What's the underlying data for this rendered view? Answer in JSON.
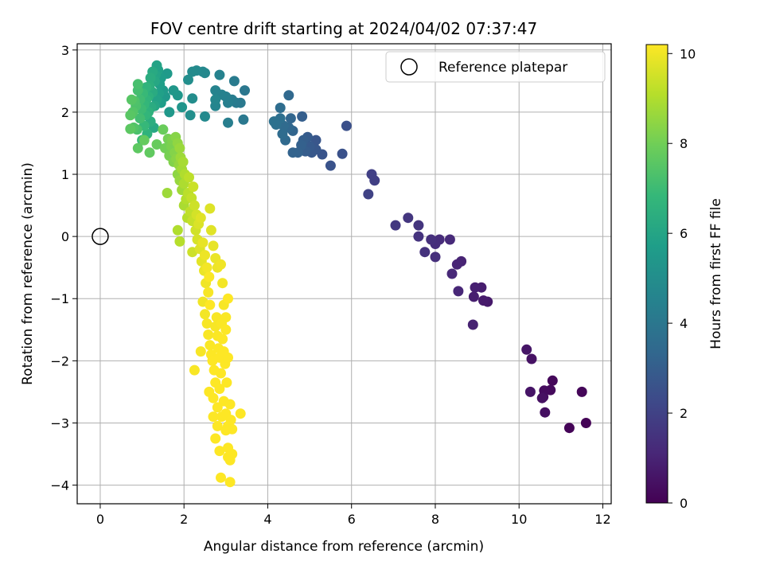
{
  "chart_data": {
    "type": "scatter",
    "title": "FOV centre drift starting at 2024/04/02 07:37:47",
    "xlabel": "Angular distance from reference (arcmin)",
    "ylabel": "Rotation from reference (arcmin)",
    "xlim": [
      -0.55,
      12.2
    ],
    "ylim": [
      -4.3,
      3.1
    ],
    "xticks": [
      0,
      2,
      4,
      6,
      8,
      10,
      12
    ],
    "yticks": [
      -4,
      -3,
      -2,
      -1,
      0,
      1,
      2,
      3
    ],
    "xtick_labels": [
      "0",
      "2",
      "4",
      "6",
      "8",
      "10",
      "12"
    ],
    "ytick_labels": [
      "−4",
      "−3",
      "−2",
      "−1",
      "0",
      "1",
      "2",
      "3"
    ],
    "grid": true,
    "legend": {
      "placement": "top-right",
      "entries": [
        {
          "label": "Reference platepar",
          "marker": "open-circle"
        }
      ]
    },
    "reference_point": {
      "x": 0,
      "y": 0
    },
    "colorbar": {
      "label": "Hours from first FF file",
      "colormap": "viridis",
      "range": [
        0,
        10.2
      ],
      "ticks": [
        0,
        2,
        4,
        6,
        8,
        10
      ],
      "tick_labels": [
        "0",
        "2",
        "4",
        "6",
        "8",
        "10"
      ]
    },
    "points_xyc": [
      [
        11.6,
        -3.0,
        0.05
      ],
      [
        11.2,
        -3.08,
        0.1
      ],
      [
        11.5,
        -2.5,
        0.15
      ],
      [
        10.8,
        -2.32,
        0.2
      ],
      [
        10.75,
        -2.47,
        0.25
      ],
      [
        10.6,
        -2.48,
        0.3
      ],
      [
        10.58,
        -2.58,
        0.35
      ],
      [
        10.62,
        -2.83,
        0.4
      ],
      [
        10.55,
        -2.6,
        0.45
      ],
      [
        10.3,
        -1.97,
        0.5
      ],
      [
        10.27,
        -2.5,
        0.55
      ],
      [
        10.18,
        -1.82,
        0.6
      ],
      [
        9.25,
        -1.05,
        0.7
      ],
      [
        9.15,
        -1.03,
        0.75
      ],
      [
        9.1,
        -0.82,
        0.8
      ],
      [
        8.92,
        -0.97,
        0.85
      ],
      [
        8.95,
        -0.82,
        0.9
      ],
      [
        8.9,
        -1.42,
        0.95
      ],
      [
        8.62,
        -0.4,
        1.0
      ],
      [
        8.52,
        -0.45,
        1.05
      ],
      [
        8.55,
        -0.88,
        1.1
      ],
      [
        8.4,
        -0.6,
        1.15
      ],
      [
        8.35,
        -0.05,
        1.2
      ],
      [
        8.1,
        -0.05,
        1.25
      ],
      [
        8.0,
        -0.12,
        1.3
      ],
      [
        8.0,
        -0.33,
        1.35
      ],
      [
        7.9,
        -0.05,
        1.4
      ],
      [
        7.75,
        -0.25,
        1.45
      ],
      [
        7.6,
        0.0,
        1.5
      ],
      [
        7.6,
        0.18,
        1.55
      ],
      [
        7.35,
        0.3,
        1.6
      ],
      [
        7.05,
        0.18,
        1.65
      ],
      [
        6.55,
        0.9,
        1.9
      ],
      [
        6.48,
        1.0,
        1.95
      ],
      [
        6.4,
        0.68,
        2.0
      ],
      [
        5.88,
        1.78,
        2.5
      ],
      [
        5.78,
        1.33,
        2.55
      ],
      [
        5.5,
        1.14,
        2.6
      ],
      [
        5.3,
        1.32,
        2.65
      ],
      [
        5.15,
        1.55,
        2.7
      ],
      [
        5.15,
        1.4,
        2.75
      ],
      [
        5.05,
        1.35,
        2.8
      ],
      [
        5.0,
        1.45,
        2.85
      ],
      [
        4.95,
        1.6,
        2.9
      ],
      [
        4.9,
        1.37,
        2.95
      ],
      [
        4.85,
        1.55,
        3.0
      ],
      [
        4.82,
        1.93,
        3.05
      ],
      [
        4.8,
        1.47,
        3.1
      ],
      [
        4.72,
        1.35,
        3.15
      ],
      [
        4.6,
        1.35,
        3.2
      ],
      [
        4.6,
        1.7,
        3.25
      ],
      [
        4.55,
        1.9,
        3.3
      ],
      [
        4.5,
        1.75,
        3.35
      ],
      [
        4.5,
        2.27,
        3.4
      ],
      [
        4.42,
        1.55,
        3.45
      ],
      [
        4.38,
        1.78,
        3.5
      ],
      [
        4.35,
        1.65,
        3.55
      ],
      [
        4.3,
        2.07,
        3.6
      ],
      [
        4.3,
        1.9,
        3.65
      ],
      [
        4.2,
        1.8,
        3.7
      ],
      [
        4.15,
        1.85,
        3.75
      ],
      [
        3.45,
        2.35,
        4.0
      ],
      [
        3.42,
        1.88,
        4.05
      ],
      [
        3.35,
        2.15,
        4.1
      ],
      [
        3.25,
        2.15,
        4.15
      ],
      [
        3.2,
        2.5,
        4.2
      ],
      [
        3.15,
        2.2,
        4.25
      ],
      [
        3.05,
        1.83,
        4.3
      ],
      [
        3.05,
        2.15,
        4.35
      ],
      [
        3.0,
        2.25,
        4.4
      ],
      [
        2.9,
        2.28,
        4.45
      ],
      [
        2.85,
        2.6,
        4.5
      ],
      [
        2.75,
        2.35,
        4.55
      ],
      [
        2.75,
        2.1,
        4.6
      ],
      [
        2.75,
        2.2,
        4.65
      ],
      [
        2.5,
        2.63,
        4.7
      ],
      [
        2.45,
        2.65,
        4.75
      ],
      [
        2.5,
        1.93,
        4.8
      ],
      [
        2.3,
        2.67,
        4.85
      ],
      [
        2.2,
        2.65,
        4.9
      ],
      [
        2.2,
        2.22,
        4.95
      ],
      [
        2.1,
        2.52,
        5.0
      ],
      [
        2.15,
        1.95,
        5.05
      ],
      [
        1.95,
        2.08,
        5.3
      ],
      [
        1.85,
        2.27,
        5.35
      ],
      [
        1.75,
        2.35,
        5.4
      ],
      [
        1.65,
        2.0,
        5.45
      ],
      [
        1.55,
        2.25,
        5.5
      ],
      [
        1.6,
        2.62,
        5.55
      ],
      [
        1.5,
        2.35,
        5.6
      ],
      [
        1.45,
        2.55,
        5.65
      ],
      [
        1.45,
        2.15,
        5.7
      ],
      [
        1.42,
        2.45,
        5.75
      ],
      [
        1.4,
        2.3,
        5.8
      ],
      [
        1.38,
        2.68,
        5.85
      ],
      [
        1.35,
        2.2,
        5.9
      ],
      [
        1.35,
        2.75,
        5.95
      ],
      [
        1.32,
        2.6,
        6.0
      ],
      [
        1.3,
        2.1,
        6.05
      ],
      [
        1.3,
        2.5,
        6.1
      ],
      [
        1.28,
        1.75,
        6.15
      ],
      [
        1.25,
        2.65,
        6.2
      ],
      [
        1.25,
        2.32,
        6.25
      ],
      [
        1.22,
        2.08,
        6.3
      ],
      [
        1.2,
        2.55,
        6.35
      ],
      [
        1.2,
        1.85,
        6.4
      ],
      [
        1.18,
        2.42,
        6.45
      ],
      [
        1.15,
        2.25,
        6.5
      ],
      [
        1.15,
        2.0,
        6.55
      ],
      [
        1.12,
        1.65,
        6.6
      ],
      [
        1.1,
        2.4,
        6.65
      ],
      [
        1.1,
        2.2,
        6.7
      ],
      [
        1.08,
        1.95,
        6.75
      ],
      [
        1.05,
        2.12,
        6.8
      ],
      [
        1.05,
        1.78,
        6.85
      ],
      [
        1.02,
        2.3,
        6.9
      ],
      [
        1.0,
        1.55,
        6.95
      ],
      [
        0.98,
        2.05,
        7.0
      ],
      [
        0.95,
        2.2,
        7.05
      ],
      [
        0.95,
        1.9,
        7.1
      ],
      [
        0.9,
        2.35,
        7.15
      ],
      [
        0.9,
        2.45,
        7.2
      ],
      [
        0.88,
        1.72,
        7.25
      ],
      [
        0.85,
        2.1,
        7.3
      ],
      [
        0.82,
        2.18,
        7.35
      ],
      [
        0.8,
        1.75,
        7.4
      ],
      [
        0.78,
        2.0,
        7.45
      ],
      [
        0.75,
        2.2,
        7.5
      ],
      [
        0.72,
        1.95,
        7.55
      ],
      [
        0.72,
        1.73,
        7.6
      ],
      [
        0.9,
        1.42,
        7.65
      ],
      [
        1.18,
        1.35,
        7.7
      ],
      [
        1.05,
        1.55,
        7.75
      ],
      [
        1.35,
        1.48,
        7.8
      ],
      [
        1.5,
        1.72,
        7.85
      ],
      [
        1.55,
        1.42,
        8.0
      ],
      [
        1.62,
        1.57,
        8.05
      ],
      [
        1.65,
        1.3,
        8.1
      ],
      [
        1.7,
        1.45,
        8.15
      ],
      [
        1.72,
        1.55,
        8.2
      ],
      [
        1.75,
        1.2,
        8.25
      ],
      [
        1.78,
        1.35,
        8.3
      ],
      [
        1.8,
        1.6,
        8.35
      ],
      [
        1.82,
        1.25,
        8.4
      ],
      [
        1.85,
        1.0,
        8.45
      ],
      [
        1.85,
        1.5,
        8.5
      ],
      [
        1.88,
        1.15,
        8.55
      ],
      [
        1.9,
        0.9,
        8.6
      ],
      [
        1.9,
        1.42,
        8.65
      ],
      [
        1.92,
        1.27,
        8.7
      ],
      [
        1.95,
        0.75,
        8.75
      ],
      [
        1.95,
        1.08,
        8.8
      ],
      [
        1.98,
        1.2,
        8.85
      ],
      [
        2.0,
        0.5,
        8.9
      ],
      [
        2.0,
        0.85,
        8.95
      ],
      [
        2.02,
        1.0,
        9.0
      ],
      [
        2.05,
        0.6,
        9.05
      ],
      [
        2.08,
        0.3,
        9.1
      ],
      [
        2.1,
        0.7,
        9.15
      ],
      [
        2.12,
        0.95,
        9.2
      ],
      [
        2.15,
        0.4,
        9.25
      ],
      [
        2.18,
        0.62,
        9.3
      ],
      [
        2.2,
        0.25,
        9.35
      ],
      [
        2.22,
        0.8,
        9.4
      ],
      [
        2.25,
        0.5,
        9.45
      ],
      [
        2.28,
        0.1,
        9.5
      ],
      [
        2.3,
        0.35,
        9.55
      ],
      [
        2.32,
        -0.05,
        9.6
      ],
      [
        2.35,
        0.2,
        9.65
      ],
      [
        2.38,
        -0.2,
        9.7
      ],
      [
        2.4,
        0.3,
        9.75
      ],
      [
        2.42,
        -0.4,
        9.8
      ],
      [
        2.45,
        -0.1,
        9.85
      ],
      [
        2.48,
        -0.55,
        9.9
      ],
      [
        2.5,
        -0.3,
        9.95
      ],
      [
        2.52,
        -0.75,
        10.0
      ],
      [
        2.55,
        -0.5,
        10.05
      ],
      [
        2.58,
        -0.9,
        10.1
      ],
      [
        2.6,
        -0.65,
        10.15
      ],
      [
        2.62,
        -1.1,
        10.2
      ],
      [
        1.6,
        0.7,
        8.7
      ],
      [
        1.85,
        0.1,
        9.0
      ],
      [
        1.9,
        -0.08,
        9.1
      ],
      [
        2.2,
        -0.25,
        9.45
      ],
      [
        2.62,
        0.45,
        9.7
      ],
      [
        2.65,
        0.1,
        9.75
      ],
      [
        2.7,
        -0.15,
        9.85
      ],
      [
        2.75,
        -0.35,
        9.9
      ],
      [
        2.8,
        -0.5,
        9.95
      ],
      [
        2.88,
        -0.45,
        10.0
      ],
      [
        2.92,
        -0.75,
        10.05
      ],
      [
        2.95,
        -1.1,
        10.1
      ],
      [
        3.0,
        -1.3,
        10.15
      ],
      [
        3.05,
        -1.0,
        10.2
      ],
      [
        2.45,
        -1.05,
        10.0
      ],
      [
        2.5,
        -1.25,
        10.05
      ],
      [
        2.55,
        -1.4,
        10.1
      ],
      [
        2.58,
        -1.58,
        10.12
      ],
      [
        2.62,
        -1.75,
        10.15
      ],
      [
        2.65,
        -1.9,
        10.18
      ],
      [
        2.68,
        -2.0,
        10.2
      ],
      [
        2.72,
        -2.15,
        10.2
      ],
      [
        2.75,
        -1.45,
        10.1
      ],
      [
        2.78,
        -1.3,
        10.12
      ],
      [
        2.8,
        -1.6,
        10.15
      ],
      [
        2.82,
        -1.8,
        10.18
      ],
      [
        2.85,
        -1.95,
        10.2
      ],
      [
        2.88,
        -2.2,
        10.2
      ],
      [
        2.9,
        -1.4,
        10.15
      ],
      [
        2.92,
        -1.65,
        10.18
      ],
      [
        2.95,
        -1.85,
        10.2
      ],
      [
        2.98,
        -2.05,
        10.2
      ],
      [
        3.0,
        -1.5,
        10.18
      ],
      [
        3.05,
        -1.95,
        10.2
      ],
      [
        3.02,
        -2.35,
        10.2
      ],
      [
        2.4,
        -1.85,
        10.1
      ],
      [
        2.25,
        -2.15,
        10.12
      ],
      [
        2.6,
        -2.5,
        10.2
      ],
      [
        2.7,
        -2.6,
        10.2
      ],
      [
        2.75,
        -2.35,
        10.2
      ],
      [
        2.8,
        -2.75,
        10.2
      ],
      [
        2.85,
        -2.45,
        10.2
      ],
      [
        2.9,
        -2.9,
        10.2
      ],
      [
        2.95,
        -2.65,
        10.2
      ],
      [
        3.0,
        -2.85,
        10.2
      ],
      [
        3.05,
        -3.05,
        10.2
      ],
      [
        3.1,
        -2.7,
        10.2
      ],
      [
        3.12,
        -2.95,
        10.2
      ],
      [
        3.15,
        -3.1,
        10.2
      ],
      [
        2.7,
        -2.9,
        10.2
      ],
      [
        2.75,
        -3.25,
        10.2
      ],
      [
        2.8,
        -3.05,
        10.2
      ],
      [
        2.85,
        -3.45,
        10.2
      ],
      [
        3.05,
        -3.4,
        10.2
      ],
      [
        3.1,
        -3.6,
        10.2
      ],
      [
        3.15,
        -3.5,
        10.2
      ],
      [
        3.0,
        -3.12,
        10.2
      ],
      [
        3.35,
        -2.85,
        10.2
      ],
      [
        2.88,
        -3.88,
        10.2
      ],
      [
        3.1,
        -3.95,
        10.2
      ],
      [
        3.05,
        -3.55,
        10.2
      ]
    ]
  }
}
